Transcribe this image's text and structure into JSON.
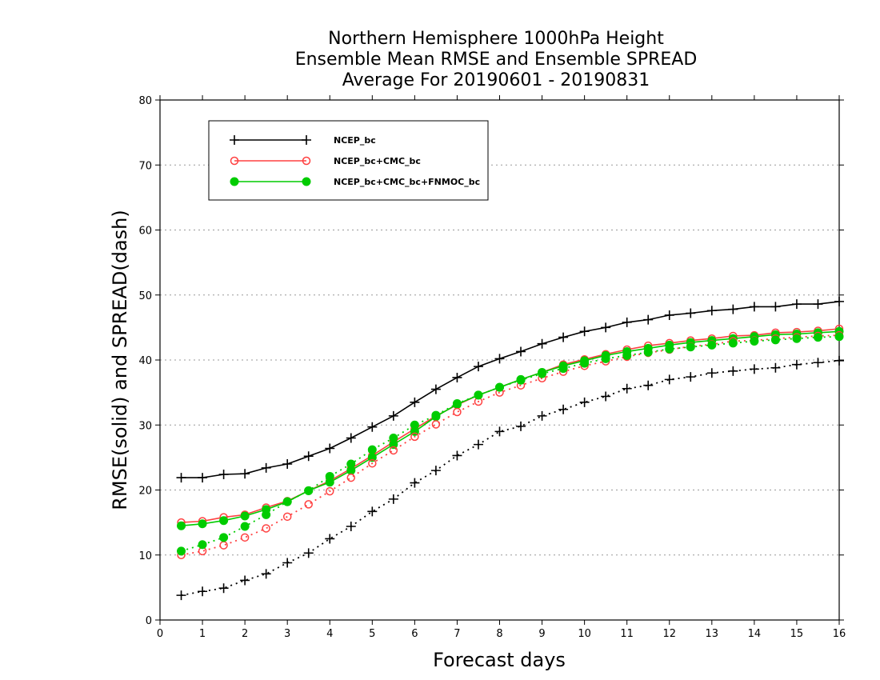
{
  "chart_data": {
    "type": "line",
    "title": [
      "Northern Hemisphere 1000hPa Height",
      "Ensemble Mean RMSE and Ensemble SPREAD",
      "Average For 20190601 - 20190831"
    ],
    "xlabel": "Forecast days",
    "ylabel": "RMSE(solid) and SPREAD(dash)",
    "xlim": [
      0,
      16
    ],
    "ylim": [
      0,
      80
    ],
    "xticks": [
      0,
      1,
      2,
      3,
      4,
      5,
      6,
      7,
      8,
      9,
      10,
      11,
      12,
      13,
      14,
      15,
      16
    ],
    "yticks": [
      0,
      10,
      20,
      30,
      40,
      50,
      60,
      70,
      80
    ],
    "grid": "horizontal dotted",
    "legend_placement": "top-left",
    "x": [
      0.5,
      1,
      1.5,
      2,
      2.5,
      3,
      3.5,
      4,
      4.5,
      5,
      5.5,
      6,
      6.5,
      7,
      7.5,
      8,
      8.5,
      9,
      9.5,
      10,
      10.5,
      11,
      11.5,
      12,
      12.5,
      13,
      13.5,
      14,
      14.5,
      15,
      15.5,
      16
    ],
    "series": [
      {
        "name": "NCEP_bc",
        "metric": "RMSE",
        "color": "#000000",
        "marker": "plus",
        "values": [
          21.9,
          21.9,
          22.4,
          22.5,
          23.4,
          24.0,
          25.2,
          26.4,
          28.0,
          29.7,
          31.4,
          33.5,
          35.5,
          37.3,
          39.0,
          40.2,
          41.3,
          42.5,
          43.5,
          44.4,
          45.0,
          45.8,
          46.2,
          46.9,
          47.2,
          47.6,
          47.8,
          48.2,
          48.2,
          48.6,
          48.6,
          49.0
        ]
      },
      {
        "name": "NCEP_bc+CMC_bc",
        "metric": "RMSE",
        "color": "#ff4040",
        "marker": "open-circle",
        "values": [
          15.0,
          15.2,
          15.8,
          16.2,
          17.3,
          18.3,
          19.9,
          21.4,
          23.3,
          25.3,
          27.4,
          29.4,
          31.4,
          33.1,
          34.6,
          35.8,
          37.0,
          38.1,
          39.3,
          40.1,
          40.9,
          41.6,
          42.2,
          42.6,
          43.0,
          43.3,
          43.7,
          43.8,
          44.2,
          44.3,
          44.5,
          44.8
        ]
      },
      {
        "name": "NCEP_bc+CMC_bc+FNMOC_bc",
        "metric": "RMSE",
        "color": "#00cc00",
        "marker": "filled-circle",
        "values": [
          14.5,
          14.8,
          15.3,
          16.0,
          17.0,
          18.2,
          19.9,
          21.2,
          23.0,
          25.0,
          27.0,
          29.0,
          31.3,
          33.2,
          34.6,
          35.8,
          37.0,
          38.1,
          39.1,
          39.9,
          40.7,
          41.3,
          41.8,
          42.3,
          42.7,
          43.0,
          43.3,
          43.6,
          43.9,
          44.0,
          44.2,
          44.4
        ]
      },
      {
        "name": "NCEP_bc",
        "metric": "SPREAD",
        "color": "#000000",
        "marker": "plus",
        "values": [
          3.8,
          4.4,
          4.9,
          6.1,
          7.1,
          8.8,
          10.3,
          12.5,
          14.4,
          16.7,
          18.6,
          21.1,
          23.0,
          25.3,
          27.0,
          29.0,
          29.8,
          31.4,
          32.4,
          33.5,
          34.4,
          35.6,
          36.1,
          37.0,
          37.4,
          38.0,
          38.3,
          38.6,
          38.8,
          39.3,
          39.6,
          39.9
        ]
      },
      {
        "name": "NCEP_bc+CMC_bc",
        "metric": "SPREAD",
        "color": "#ff4040",
        "marker": "open-circle",
        "values": [
          10.0,
          10.6,
          11.5,
          12.7,
          14.1,
          15.9,
          17.8,
          19.8,
          21.9,
          24.1,
          26.1,
          28.2,
          30.1,
          32.0,
          33.6,
          35.0,
          36.1,
          37.2,
          38.2,
          39.1,
          39.8,
          40.5,
          41.1,
          41.6,
          42.1,
          42.4,
          42.9,
          43.0,
          43.3,
          43.5,
          43.7,
          43.8
        ]
      },
      {
        "name": "NCEP_bc+CMC_bc+FNMOC_bc",
        "metric": "SPREAD",
        "color": "#00cc00",
        "marker": "filled-circle",
        "values": [
          10.6,
          11.6,
          12.7,
          14.4,
          16.2,
          18.2,
          19.9,
          22.1,
          24.0,
          26.2,
          28.0,
          30.0,
          31.5,
          33.3,
          34.6,
          35.8,
          36.9,
          37.9,
          38.7,
          39.5,
          40.2,
          40.7,
          41.2,
          41.7,
          42.0,
          42.3,
          42.6,
          42.9,
          43.1,
          43.3,
          43.5,
          43.6
        ]
      }
    ],
    "legend": [
      {
        "label": "NCEP_bc",
        "color": "#000000",
        "marker": "plus"
      },
      {
        "label": "NCEP_bc+CMC_bc",
        "color": "#ff4040",
        "marker": "open-circle"
      },
      {
        "label": "NCEP_bc+CMC_bc+FNMOC_bc",
        "color": "#00cc00",
        "marker": "filled-circle"
      }
    ]
  }
}
